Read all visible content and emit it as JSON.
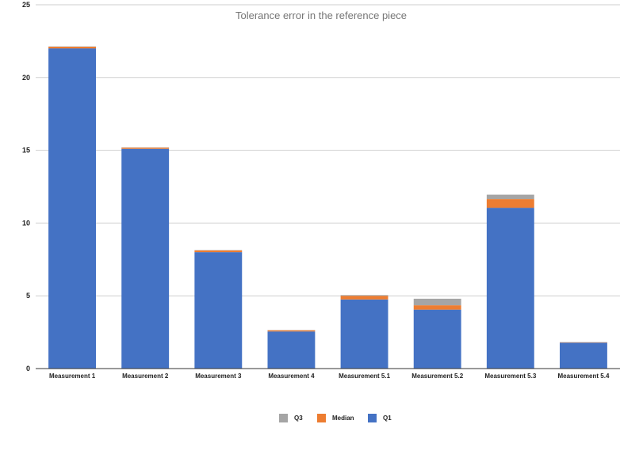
{
  "chart_data": {
    "type": "bar",
    "stacked": true,
    "title": "Tolerance error in the reference piece",
    "xlabel": "",
    "ylabel": "",
    "ylim": [
      0,
      25
    ],
    "y_ticks": [
      0,
      5,
      10,
      15,
      20,
      25
    ],
    "grid": true,
    "legend_position": "bottom",
    "categories": [
      "Measurement 1",
      "Measurement 2",
      "Measurement 3",
      "Measurement 4",
      "Measurement 5.1",
      "Measurement 5.2",
      "Measurement 5.3",
      "Measurement 5.4"
    ],
    "series": [
      {
        "name": "Q1",
        "color": "#4472C4",
        "values": [
          22.0,
          15.1,
          8.0,
          2.55,
          4.75,
          4.05,
          11.05,
          1.78
        ]
      },
      {
        "name": "Median",
        "color": "#ED7D31",
        "values": [
          0.12,
          0.08,
          0.12,
          0.08,
          0.25,
          0.3,
          0.6,
          0.02
        ]
      },
      {
        "name": "Q3",
        "color": "#A5A5A5",
        "values": [
          0.02,
          0.02,
          0.02,
          0.02,
          0.05,
          0.45,
          0.3,
          0.02
        ]
      }
    ],
    "legend_order": [
      "Q3",
      "Median",
      "Q1"
    ]
  }
}
